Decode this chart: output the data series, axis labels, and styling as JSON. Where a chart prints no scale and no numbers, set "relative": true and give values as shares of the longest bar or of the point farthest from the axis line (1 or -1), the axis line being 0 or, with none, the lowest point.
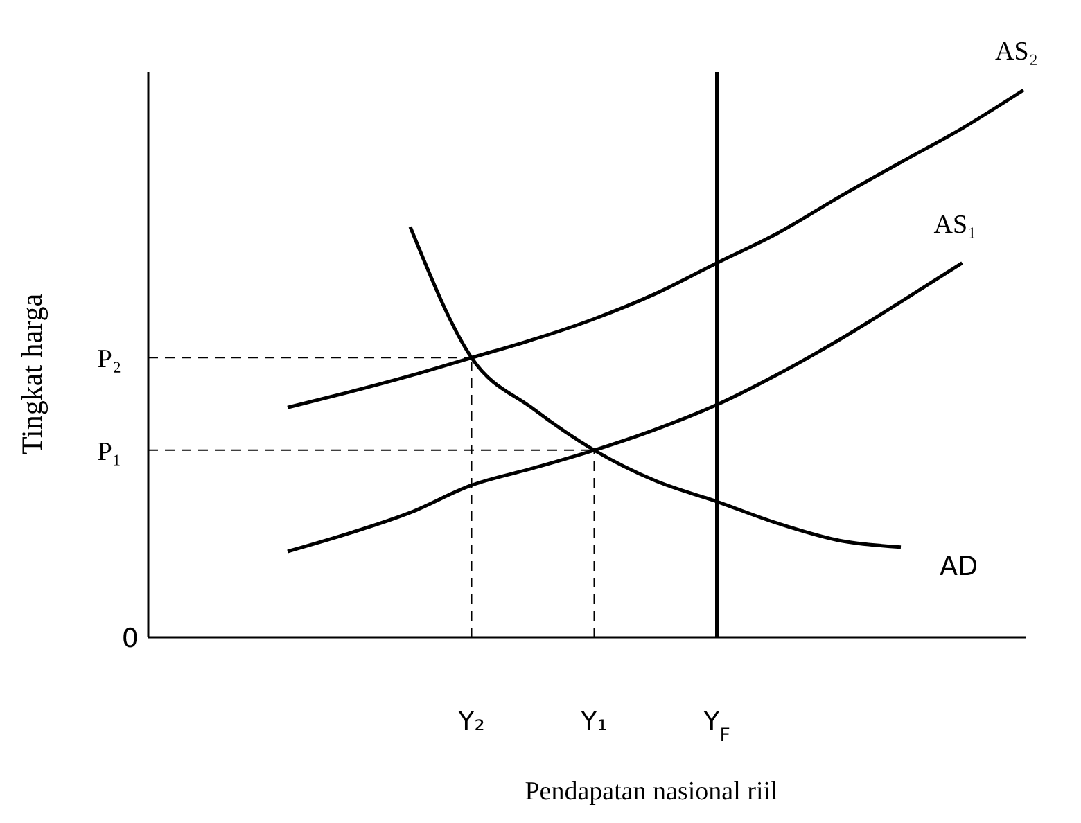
{
  "chart_data": {
    "type": "line",
    "relative": true,
    "xlabel": "Pendapatan nasional riil",
    "ylabel": "Tingkat harga",
    "categories": [
      null,
      null,
      null,
      null,
      null,
      "Y₂",
      null,
      "Y₁",
      null,
      "Y$_{F}$",
      null,
      null,
      null,
      null,
      null
    ],
    "series": [
      {
        "name": "AS₂",
        "color": "#000000",
        "values": [
          null,
          null,
          0.42,
          0.448,
          0.478,
          0.511,
          0.544,
          0.582,
          0.628,
          0.684,
          0.739,
          0.805,
          0.868,
          0.93,
          1.0
        ]
      },
      {
        "name": "AS₁",
        "color": "#000000",
        "values": [
          null,
          null,
          0.157,
          0.19,
          0.228,
          0.278,
          0.309,
          0.342,
          0.38,
          0.425,
          0.481,
          0.544,
          0.613,
          0.684,
          null
        ]
      },
      {
        "name": "AD",
        "color": "#000000",
        "values": [
          null,
          null,
          null,
          null,
          0.75,
          0.511,
          0.418,
          0.342,
          0.286,
          0.248,
          0.208,
          0.177,
          0.165,
          null,
          null
        ]
      }
    ],
    "ref_lines": [
      {
        "axis": "x",
        "value": "Y$_{F}$",
        "color": "#000000",
        "line_style": "solid"
      },
      {
        "axis": "y",
        "value": 0.511,
        "label": "P₂",
        "color": "#000000",
        "line_style": "dashed"
      },
      {
        "axis": "y",
        "value": 0.342,
        "label": "P₁",
        "color": "#000000",
        "line_style": "dashed"
      },
      {
        "axis": "x",
        "value": "Y₂",
        "color": "#000000",
        "line_style": "dashed"
      },
      {
        "axis": "x",
        "value": "Y₁",
        "color": "#000000",
        "line_style": "dashed"
      }
    ],
    "annotations": [
      "0"
    ],
    "grid": false,
    "marker": "none",
    "line_style": "solid"
  }
}
